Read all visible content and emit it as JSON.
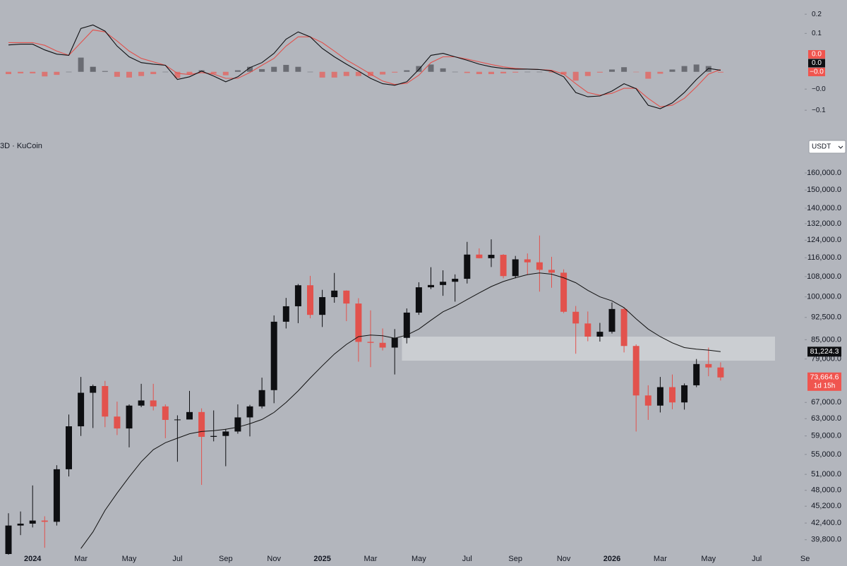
{
  "header": {
    "symbol_text": "3D · KuCoin",
    "currency": "USDT"
  },
  "chart_data": [
    {
      "type": "candlestick",
      "categories": [
        null,
        null,
        "2024",
        null,
        null,
        null,
        "Mar",
        null,
        null,
        null,
        "May",
        null,
        null,
        null,
        "Jul",
        null,
        null,
        null,
        "Sep",
        null,
        null,
        null,
        "Nov",
        null,
        null,
        null,
        "2025",
        null,
        null,
        null,
        "Mar",
        null,
        null,
        null,
        "May",
        null,
        null,
        null,
        "Jul",
        null,
        null,
        null,
        "Sep",
        null,
        null,
        null,
        "Nov",
        null,
        null,
        null,
        "2026",
        null,
        null,
        null,
        "Mar",
        null,
        null,
        null,
        "May",
        null,
        null,
        null,
        "Jul",
        null,
        null,
        null,
        "Se",
        null
      ],
      "open": [
        37700,
        42000,
        42300,
        42800,
        42600,
        52000,
        61200,
        69500,
        71300,
        63500,
        60700,
        66200,
        67500,
        66000,
        62700,
        62800,
        64600,
        58800,
        59000,
        60000,
        63300,
        66000,
        70200,
        91000,
        96500,
        104500,
        93400,
        99900,
        102400,
        97500,
        84300,
        84000,
        82500,
        85600,
        94200,
        103700,
        104600,
        105900,
        107100,
        117400,
        115800,
        117300,
        108200,
        115300,
        114000,
        110800,
        109600,
        94500,
        90400,
        86000,
        87600,
        95500,
        83000,
        68800,
        66200,
        71000,
        67000,
        71500,
        77500,
        76500,
        null,
        null,
        null,
        null,
        null,
        null,
        null,
        null
      ],
      "high": [
        44000,
        44300,
        48900,
        43500,
        52800,
        64000,
        73800,
        71700,
        72700,
        67200,
        66500,
        71900,
        71900,
        66500,
        63800,
        70000,
        65500,
        65000,
        60600,
        66500,
        66400,
        73600,
        93200,
        99600,
        105000,
        108300,
        102700,
        109500,
        102500,
        99500,
        95000,
        88700,
        88500,
        95700,
        105700,
        111900,
        110600,
        108900,
        123200,
        120200,
        124400,
        117600,
        116800,
        117900,
        126200,
        116400,
        111000,
        96600,
        94600,
        90600,
        97900,
        96000,
        83500,
        71500,
        73800,
        74500,
        72000,
        79000,
        82500,
        78000,
        null,
        null,
        null,
        null,
        null,
        null,
        null,
        null
      ],
      "low": [
        37600,
        40500,
        41700,
        38600,
        42000,
        50600,
        59000,
        60800,
        61000,
        59200,
        56500,
        65800,
        65000,
        58500,
        53500,
        63000,
        49000,
        57800,
        52600,
        59500,
        58900,
        65500,
        66800,
        88700,
        90500,
        92200,
        89200,
        97800,
        91200,
        78200,
        76600,
        81600,
        74500,
        83800,
        93400,
        103000,
        100400,
        98200,
        105200,
        115700,
        112000,
        107300,
        107300,
        108600,
        102000,
        103500,
        94000,
        80600,
        84500,
        84400,
        87000,
        81000,
        60000,
        62700,
        64500,
        65300,
        65200,
        71000,
        74000,
        72800,
        null,
        null,
        null,
        null,
        null,
        null,
        null,
        null
      ],
      "close": [
        42000,
        42300,
        42800,
        42600,
        52000,
        61200,
        69500,
        71300,
        63500,
        60700,
        66200,
        67500,
        66000,
        62700,
        62800,
        64600,
        58800,
        59000,
        60000,
        63300,
        66000,
        70200,
        91000,
        96500,
        104500,
        93400,
        99900,
        102400,
        97500,
        84300,
        84000,
        82500,
        85600,
        94200,
        103700,
        104600,
        105900,
        107100,
        117400,
        115800,
        117300,
        108200,
        115300,
        114000,
        110800,
        109600,
        94500,
        90400,
        86000,
        87600,
        95500,
        83000,
        68800,
        66200,
        71000,
        67000,
        71500,
        77500,
        76500,
        73664.6,
        null,
        null,
        null,
        null,
        null,
        null,
        null,
        null
      ],
      "up_color": "#0e0f12",
      "down_color": "#e2524d",
      "ma": {
        "color": "#111111",
        "values": [
          null,
          null,
          null,
          null,
          null,
          null,
          38500,
          41000,
          44500,
          47500,
          50500,
          53500,
          56000,
          57500,
          58500,
          59500,
          60000,
          60200,
          60500,
          61000,
          61800,
          62800,
          64500,
          67000,
          70000,
          73500,
          77000,
          80500,
          83500,
          86000,
          86500,
          86300,
          85500,
          86500,
          88500,
          91500,
          94500,
          96500,
          99000,
          101500,
          104000,
          106000,
          107500,
          108800,
          109500,
          109000,
          107500,
          105500,
          102500,
          100000,
          98500,
          96000,
          92000,
          88500,
          86000,
          84000,
          82500,
          82000,
          81700,
          81224.3,
          null,
          null,
          null,
          null,
          null,
          null,
          null,
          null
        ]
      },
      "log_scale": true,
      "ylim": [
        37700,
        166600
      ],
      "yticks": [
        {
          "value": 160000,
          "label": "160,000.0"
        },
        {
          "value": 150000,
          "label": "150,000.0"
        },
        {
          "value": 140000,
          "label": "140,000.0"
        },
        {
          "value": 132000,
          "label": "132,000.0"
        },
        {
          "value": 124000,
          "label": "124,000.0"
        },
        {
          "value": 116000,
          "label": "116,000.0"
        },
        {
          "value": 108000,
          "label": "108,000.0"
        },
        {
          "value": 100000,
          "label": "100,000.0"
        },
        {
          "value": 92500,
          "label": "92,500.0"
        },
        {
          "value": 85000,
          "label": "85,000.0"
        },
        {
          "value": 79000,
          "label": "79,000.0"
        },
        {
          "value": 67000,
          "label": "67,000.0"
        },
        {
          "value": 63000,
          "label": "63,000.0"
        },
        {
          "value": 59000,
          "label": "59,000.0"
        },
        {
          "value": 55000,
          "label": "55,000.0"
        },
        {
          "value": 51000,
          "label": "51,000.0"
        },
        {
          "value": 48000,
          "label": "48,000.0"
        },
        {
          "value": 45200,
          "label": "45,200.0"
        },
        {
          "value": 42400,
          "label": "42,400.0"
        },
        {
          "value": 39800,
          "label": "39,800.0"
        }
      ],
      "zone": {
        "low": 78500,
        "high": 86000,
        "color": "#d3d5da"
      },
      "price_tags": [
        {
          "value": 81224.3,
          "label": "81,224.3",
          "color": "#0e0f12"
        },
        {
          "value": 73664.6,
          "label": "73,664.6",
          "countdown": "1d 15h",
          "color": "#f0554f"
        }
      ]
    },
    {
      "type": "macd",
      "macd": {
        "color": "#0e0f12",
        "values": [
          0.07,
          0.072,
          0.072,
          0.057,
          0.046,
          0.043,
          0.113,
          0.122,
          0.106,
          0.067,
          0.039,
          0.024,
          0.02,
          0.017,
          -0.02,
          -0.013,
          0.002,
          -0.011,
          -0.026,
          -0.013,
          0.011,
          0.024,
          0.048,
          0.085,
          0.104,
          0.091,
          0.061,
          0.039,
          0.02,
          0.002,
          -0.017,
          -0.031,
          -0.035,
          -0.026,
          0.006,
          0.043,
          0.048,
          0.039,
          0.03,
          0.02,
          0.013,
          0.009,
          0.007,
          0.007,
          0.006,
          0.002,
          -0.013,
          -0.054,
          -0.065,
          -0.063,
          -0.05,
          -0.031,
          -0.044,
          -0.087,
          -0.096,
          -0.081,
          -0.054,
          -0.02,
          0.009,
          0.004,
          null,
          null,
          null,
          null,
          null,
          null,
          null,
          null
        ]
      },
      "signal": {
        "color": "#e2524d",
        "values": [
          0.076,
          0.076,
          0.076,
          0.069,
          0.054,
          0.043,
          0.076,
          0.109,
          0.104,
          0.08,
          0.054,
          0.035,
          0.026,
          0.017,
          -0.004,
          -0.007,
          -0.002,
          -0.006,
          -0.017,
          -0.017,
          -0.002,
          0.017,
          0.035,
          0.067,
          0.091,
          0.091,
          0.076,
          0.054,
          0.031,
          0.013,
          -0.006,
          -0.024,
          -0.033,
          -0.03,
          -0.009,
          0.024,
          0.039,
          0.039,
          0.033,
          0.026,
          0.019,
          0.013,
          0.009,
          0.007,
          0.006,
          0.004,
          -0.006,
          -0.031,
          -0.054,
          -0.061,
          -0.056,
          -0.043,
          -0.043,
          -0.069,
          -0.091,
          -0.087,
          -0.069,
          -0.039,
          -0.006,
          0.006,
          null,
          null,
          null,
          null,
          null,
          null,
          null,
          null
        ]
      },
      "histogram": {
        "up_color": "#5d5f66",
        "down_color": "#e06a66",
        "values": [
          -0.006,
          -0.004,
          -0.004,
          -0.012,
          -0.008,
          0,
          0.037,
          0.013,
          0.002,
          -0.013,
          -0.015,
          -0.011,
          -0.006,
          0,
          -0.016,
          -0.006,
          0.004,
          -0.005,
          -0.009,
          0.004,
          0.013,
          0.007,
          0.013,
          0.018,
          0.013,
          0,
          -0.015,
          -0.015,
          -0.011,
          -0.011,
          -0.011,
          -0.007,
          -0.002,
          0.004,
          0.015,
          0.019,
          0.009,
          0,
          -0.003,
          -0.006,
          -0.006,
          -0.004,
          -0.002,
          0,
          0,
          -0.002,
          -0.007,
          -0.023,
          -0.011,
          -0.002,
          0.006,
          0.012,
          -0.001,
          -0.018,
          -0.005,
          0.006,
          0.015,
          0.019,
          0.015,
          -0.002,
          null,
          null,
          null,
          null,
          null,
          null,
          null,
          null
        ]
      },
      "ylim": [
        -0.153,
        0.187
      ],
      "yticks": [
        {
          "value": 0.15,
          "label": "0.2"
        },
        {
          "value": 0.1,
          "label": "0.1"
        },
        {
          "value": -0.045,
          "label": "−0.0"
        },
        {
          "value": -0.1,
          "label": "−0.1"
        }
      ],
      "tags": [
        {
          "value": 0.006,
          "label": "0.0",
          "color": "#f0554f"
        },
        {
          "value": 0.004,
          "label": "0.0",
          "color": "#0e0f12"
        },
        {
          "value": -0.002,
          "label": "−0.0",
          "color": "#f0554f"
        }
      ]
    }
  ]
}
